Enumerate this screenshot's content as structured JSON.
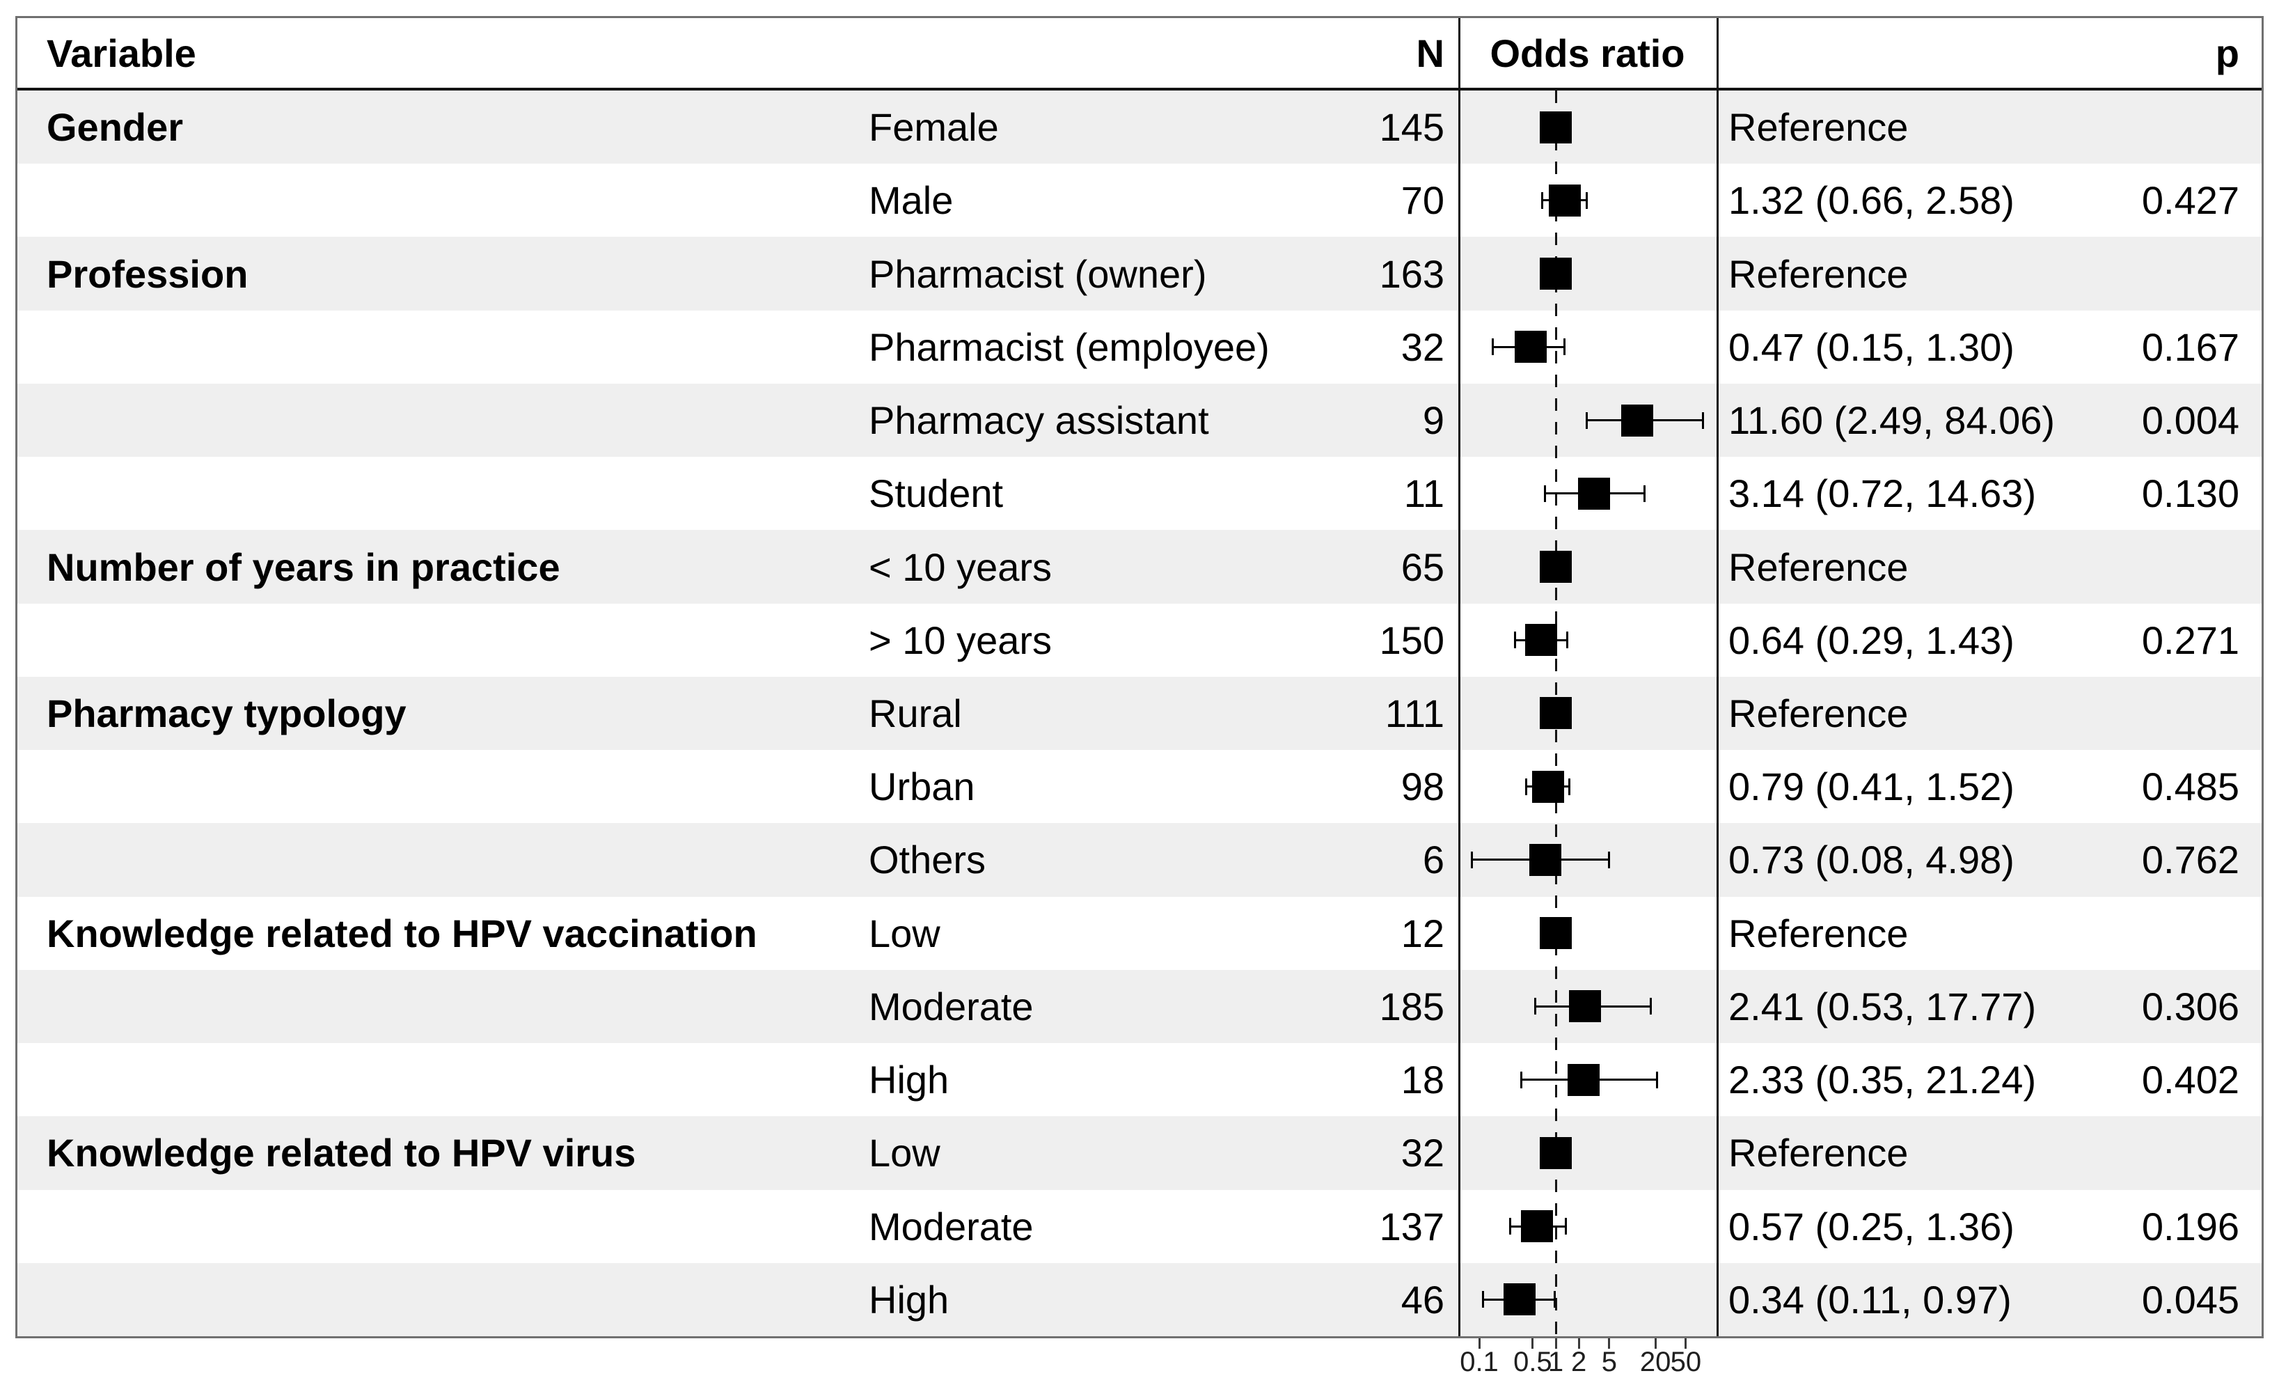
{
  "colors": {
    "row_shade": "#efefef",
    "marker": "#000000",
    "frame_border": "#707070",
    "grid_line": "#141414"
  },
  "chart_data": {
    "type": "scatter",
    "style": "forest-plot",
    "title": "",
    "xlabel": "",
    "ylabel": "",
    "columns": {
      "variable": "Variable",
      "n": "N",
      "odds_ratio": "Odds ratio",
      "p": "p"
    },
    "axis": {
      "scale": "log10",
      "range": [
        0.05,
        123
      ],
      "reference_line": 1,
      "ticks": [
        {
          "value": 0.1,
          "label": "0.1"
        },
        {
          "value": 0.5,
          "label": "0.5"
        },
        {
          "value": 1,
          "label": "1"
        },
        {
          "value": 2,
          "label": "2"
        },
        {
          "value": 5,
          "label": "5"
        },
        {
          "value": 20,
          "label": "20"
        },
        {
          "value": 50,
          "label": "50"
        }
      ]
    },
    "rows": [
      {
        "variable": "Gender",
        "level": "Female",
        "n": "145",
        "or": 1,
        "ci_low": null,
        "ci_high": null,
        "estimate": "Reference",
        "p": "",
        "reference": true,
        "shaded": true
      },
      {
        "variable": "",
        "level": "Male",
        "n": "70",
        "or": 1.32,
        "ci_low": 0.66,
        "ci_high": 2.58,
        "estimate": "1.32 (0.66, 2.58)",
        "p": "0.427",
        "reference": false,
        "shaded": false
      },
      {
        "variable": "Profession",
        "level": "Pharmacist (owner)",
        "n": "163",
        "or": 1,
        "ci_low": null,
        "ci_high": null,
        "estimate": "Reference",
        "p": "",
        "reference": true,
        "shaded": true
      },
      {
        "variable": "",
        "level": "Pharmacist (employee)",
        "n": "32",
        "or": 0.47,
        "ci_low": 0.15,
        "ci_high": 1.3,
        "estimate": "0.47 (0.15, 1.30)",
        "p": "0.167",
        "reference": false,
        "shaded": false
      },
      {
        "variable": "",
        "level": "Pharmacy assistant",
        "n": "9",
        "or": 11.6,
        "ci_low": 2.49,
        "ci_high": 84.06,
        "estimate": "11.60 (2.49, 84.06)",
        "p": "0.004",
        "reference": false,
        "shaded": true
      },
      {
        "variable": "",
        "level": "Student",
        "n": "11",
        "or": 3.14,
        "ci_low": 0.72,
        "ci_high": 14.63,
        "estimate": "3.14 (0.72, 14.63)",
        "p": "0.130",
        "reference": false,
        "shaded": false
      },
      {
        "variable": "Number of years in practice",
        "level": "< 10 years",
        "n": "65",
        "or": 1,
        "ci_low": null,
        "ci_high": null,
        "estimate": "Reference",
        "p": "",
        "reference": true,
        "shaded": true
      },
      {
        "variable": "",
        "level": "> 10 years",
        "n": "150",
        "or": 0.64,
        "ci_low": 0.29,
        "ci_high": 1.43,
        "estimate": "0.64 (0.29, 1.43)",
        "p": "0.271",
        "reference": false,
        "shaded": false
      },
      {
        "variable": "Pharmacy typology",
        "level": "Rural",
        "n": "111",
        "or": 1,
        "ci_low": null,
        "ci_high": null,
        "estimate": "Reference",
        "p": "",
        "reference": true,
        "shaded": true
      },
      {
        "variable": "",
        "level": "Urban",
        "n": "98",
        "or": 0.79,
        "ci_low": 0.41,
        "ci_high": 1.52,
        "estimate": "0.79 (0.41, 1.52)",
        "p": "0.485",
        "reference": false,
        "shaded": false
      },
      {
        "variable": "",
        "level": "Others",
        "n": "6",
        "or": 0.73,
        "ci_low": 0.08,
        "ci_high": 4.98,
        "estimate": "0.73 (0.08, 4.98)",
        "p": "0.762",
        "reference": false,
        "shaded": true
      },
      {
        "variable": "Knowledge related to HPV vaccination",
        "level": "Low",
        "n": "12",
        "or": 1,
        "ci_low": null,
        "ci_high": null,
        "estimate": "Reference",
        "p": "",
        "reference": true,
        "shaded": false
      },
      {
        "variable": "",
        "level": "Moderate",
        "n": "185",
        "or": 2.41,
        "ci_low": 0.53,
        "ci_high": 17.77,
        "estimate": "2.41 (0.53, 17.77)",
        "p": "0.306",
        "reference": false,
        "shaded": true
      },
      {
        "variable": "",
        "level": "High",
        "n": "18",
        "or": 2.33,
        "ci_low": 0.35,
        "ci_high": 21.24,
        "estimate": "2.33 (0.35, 21.24)",
        "p": "0.402",
        "reference": false,
        "shaded": false
      },
      {
        "variable": "Knowledge related to HPV virus",
        "level": "Low",
        "n": "32",
        "or": 1,
        "ci_low": null,
        "ci_high": null,
        "estimate": "Reference",
        "p": "",
        "reference": true,
        "shaded": true
      },
      {
        "variable": "",
        "level": "Moderate",
        "n": "137",
        "or": 0.57,
        "ci_low": 0.25,
        "ci_high": 1.36,
        "estimate": "0.57 (0.25, 1.36)",
        "p": "0.196",
        "reference": false,
        "shaded": false
      },
      {
        "variable": "",
        "level": "High",
        "n": "46",
        "or": 0.34,
        "ci_low": 0.11,
        "ci_high": 0.97,
        "estimate": "0.34 (0.11, 0.97)",
        "p": "0.045",
        "reference": false,
        "shaded": true
      }
    ]
  }
}
